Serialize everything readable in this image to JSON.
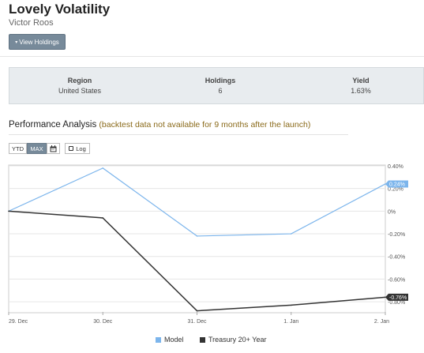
{
  "portfolio": {
    "title": "Lovely Volatility",
    "author": "Victor Roos",
    "view_holdings_label": "View Holdings"
  },
  "stats": [
    {
      "label": "Region",
      "value": "United States"
    },
    {
      "label": "Holdings",
      "value": "6"
    },
    {
      "label": "Yield",
      "value": "1.63%"
    }
  ],
  "performance": {
    "heading": "Performance Analysis",
    "note": "(backtest data not available for 9 months after the launch)",
    "controls": {
      "ytd": "YTD",
      "max": "MAX",
      "log": "Log",
      "calendar_icon": "calendar-icon"
    },
    "selected_range": "MAX"
  },
  "colors": {
    "model": "#7cb5ec",
    "treasury": "#333333",
    "accent_button": "#778a9a"
  },
  "chart_data": {
    "type": "line",
    "categories": [
      "29. Dec",
      "30. Dec",
      "31. Dec",
      "1. Jan",
      "2. Jan"
    ],
    "series": [
      {
        "name": "Model",
        "values": [
          0.0,
          0.38,
          -0.22,
          -0.2,
          0.24
        ],
        "end_label": "0.24%"
      },
      {
        "name": "Treasury 20+ Year",
        "values": [
          0.0,
          -0.06,
          -0.88,
          -0.83,
          -0.76
        ],
        "end_label": "-0.76%"
      }
    ],
    "ytick_labels": [
      "0.40%",
      "0.20%",
      "0%",
      "-0.20%",
      "-0.40%",
      "-0.60%",
      "-0.80%"
    ],
    "yticks": [
      0.4,
      0.2,
      0,
      -0.2,
      -0.4,
      -0.6,
      -0.8
    ],
    "ylim": [
      -0.89,
      0.4
    ],
    "grid": true,
    "legend_position": "bottom-center"
  }
}
